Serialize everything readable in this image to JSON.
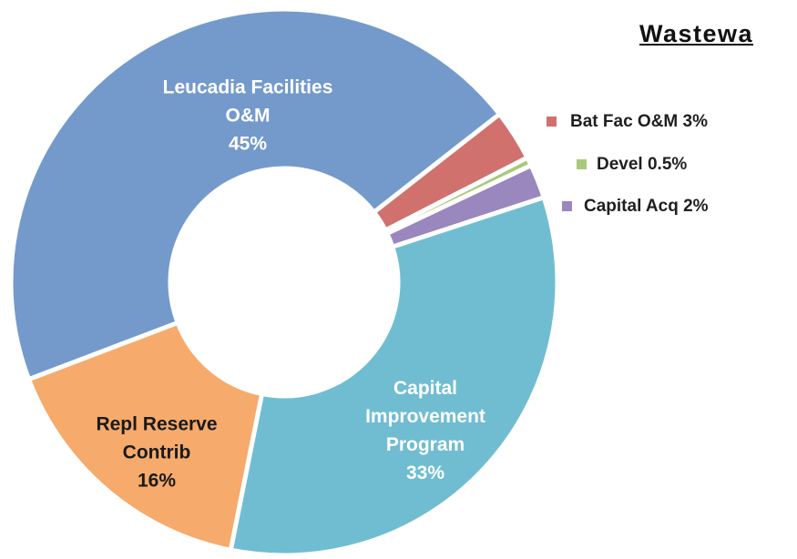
{
  "chart_data": {
    "type": "donut",
    "title": "Wastewa",
    "categories": [
      "Bat Fac O&M",
      "Devel",
      "Capital Acq",
      "Capital Improvement Program",
      "Repl Reserve Contrib",
      "Leucadia Facilities O&M"
    ],
    "values": [
      3,
      0.5,
      2,
      33,
      16,
      45
    ],
    "value_labels": [
      "3%",
      "0.5%",
      "2%",
      "33%",
      "16%",
      "45%"
    ],
    "colors": [
      "#d0716e",
      "#a8c97b",
      "#9a87bd",
      "#70bdd2",
      "#f6aa6b",
      "#749acb"
    ]
  }
}
